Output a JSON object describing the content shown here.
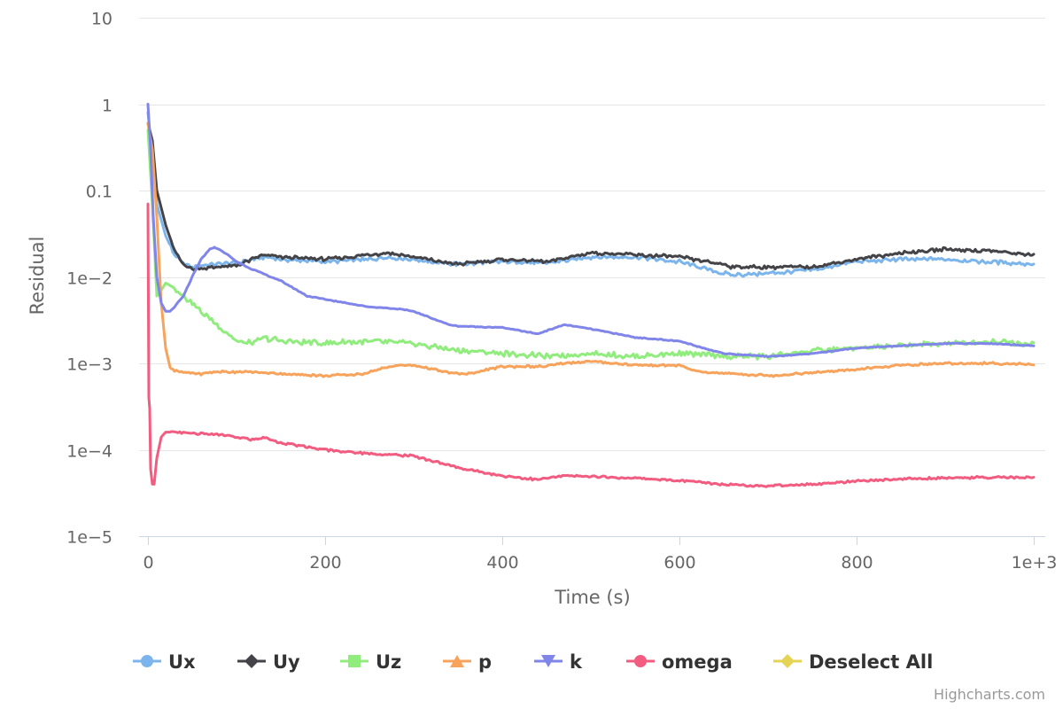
{
  "chart_data": {
    "type": "line",
    "title": "",
    "xlabel": "Time (s)",
    "ylabel": "Residual",
    "xlim": [
      0,
      1000
    ],
    "ylim": [
      1e-05,
      10
    ],
    "yscale": "log",
    "grid": true,
    "legend_position": "bottom",
    "x_ticks": [
      {
        "value": 0,
        "label": "0"
      },
      {
        "value": 200,
        "label": "200"
      },
      {
        "value": 400,
        "label": "400"
      },
      {
        "value": 600,
        "label": "600"
      },
      {
        "value": 800,
        "label": "800"
      },
      {
        "value": 1000,
        "label": "1e+3"
      }
    ],
    "y_ticks": [
      {
        "value": 10,
        "label": "10"
      },
      {
        "value": 1,
        "label": "1"
      },
      {
        "value": 0.1,
        "label": "0.1"
      },
      {
        "value": 0.01,
        "label": "1e−2"
      },
      {
        "value": 0.001,
        "label": "1e−3"
      },
      {
        "value": 0.0001,
        "label": "1e−4"
      },
      {
        "value": 1e-05,
        "label": "1e−5"
      }
    ],
    "series": [
      {
        "name": "Ux",
        "color": "#7cb5ec",
        "marker": "circle",
        "x": [
          0,
          5,
          10,
          20,
          30,
          40,
          50,
          60,
          80,
          100,
          130,
          150,
          200,
          250,
          270,
          300,
          330,
          350,
          400,
          450,
          500,
          550,
          600,
          650,
          660,
          700,
          750,
          800,
          850,
          900,
          950,
          1000
        ],
        "y": [
          0.8,
          0.25,
          0.07,
          0.03,
          0.018,
          0.014,
          0.013,
          0.0135,
          0.014,
          0.0145,
          0.017,
          0.016,
          0.015,
          0.016,
          0.017,
          0.016,
          0.0145,
          0.014,
          0.015,
          0.0145,
          0.017,
          0.017,
          0.015,
          0.011,
          0.0105,
          0.011,
          0.012,
          0.015,
          0.016,
          0.016,
          0.015,
          0.014
        ]
      },
      {
        "name": "Uy",
        "color": "#434348",
        "marker": "diamond",
        "x": [
          0,
          5,
          10,
          20,
          30,
          40,
          50,
          60,
          80,
          100,
          130,
          150,
          200,
          250,
          270,
          300,
          330,
          350,
          400,
          450,
          500,
          550,
          600,
          650,
          660,
          700,
          750,
          800,
          850,
          900,
          950,
          1000
        ],
        "y": [
          0.6,
          0.38,
          0.1,
          0.04,
          0.02,
          0.014,
          0.0125,
          0.0125,
          0.013,
          0.0135,
          0.018,
          0.017,
          0.016,
          0.018,
          0.019,
          0.017,
          0.015,
          0.014,
          0.016,
          0.015,
          0.019,
          0.018,
          0.017,
          0.014,
          0.013,
          0.013,
          0.013,
          0.016,
          0.019,
          0.021,
          0.02,
          0.018
        ]
      },
      {
        "name": "Uz",
        "color": "#90ed7d",
        "marker": "square",
        "x": [
          0,
          5,
          10,
          15,
          20,
          30,
          40,
          50,
          60,
          70,
          80,
          90,
          100,
          120,
          130,
          150,
          200,
          250,
          300,
          350,
          400,
          450,
          500,
          550,
          600,
          650,
          700,
          750,
          800,
          850,
          900,
          950,
          1000
        ],
        "y": [
          0.5,
          0.07,
          0.006,
          0.007,
          0.0085,
          0.0075,
          0.006,
          0.005,
          0.004,
          0.0033,
          0.0027,
          0.0022,
          0.0018,
          0.0017,
          0.002,
          0.0018,
          0.0017,
          0.0018,
          0.0017,
          0.0014,
          0.0013,
          0.0012,
          0.0013,
          0.0012,
          0.0013,
          0.0012,
          0.0012,
          0.0014,
          0.0015,
          0.0016,
          0.0017,
          0.0018,
          0.0017
        ]
      },
      {
        "name": "p",
        "color": "#f7a35c",
        "marker": "triangle",
        "x": [
          0,
          5,
          10,
          15,
          20,
          25,
          30,
          40,
          60,
          80,
          100,
          130,
          160,
          200,
          240,
          260,
          280,
          300,
          340,
          360,
          400,
          450,
          470,
          500,
          550,
          600,
          620,
          700,
          750,
          800,
          850,
          900,
          950,
          1000
        ],
        "y": [
          0.6,
          0.3,
          0.05,
          0.005,
          0.0015,
          0.0009,
          0.00082,
          0.00078,
          0.00076,
          0.0008,
          0.0008,
          0.00078,
          0.00075,
          0.00072,
          0.00075,
          0.00085,
          0.00095,
          0.00095,
          0.00078,
          0.00075,
          0.00092,
          0.00092,
          0.001,
          0.00105,
          0.00095,
          0.00095,
          0.0008,
          0.00072,
          0.00078,
          0.00085,
          0.00095,
          0.001,
          0.001,
          0.00098
        ]
      },
      {
        "name": "k",
        "color": "#8085e9",
        "marker": "triangle-down",
        "x": [
          0,
          3,
          6,
          10,
          15,
          20,
          25,
          30,
          40,
          50,
          60,
          70,
          75,
          80,
          90,
          100,
          120,
          150,
          180,
          200,
          250,
          280,
          300,
          340,
          350,
          400,
          440,
          470,
          500,
          550,
          600,
          650,
          700,
          750,
          800,
          850,
          900,
          950,
          1000
        ],
        "y": [
          1.0,
          0.3,
          0.05,
          0.01,
          0.005,
          0.004,
          0.004,
          0.0045,
          0.006,
          0.01,
          0.016,
          0.021,
          0.022,
          0.021,
          0.018,
          0.015,
          0.012,
          0.009,
          0.006,
          0.0055,
          0.0045,
          0.0043,
          0.004,
          0.0028,
          0.0027,
          0.0026,
          0.0022,
          0.0028,
          0.0025,
          0.002,
          0.0018,
          0.0013,
          0.0012,
          0.0013,
          0.0015,
          0.0016,
          0.0017,
          0.0017,
          0.0016
        ]
      },
      {
        "name": "omega",
        "color": "#f15c80",
        "marker": "circle",
        "x": [
          0,
          1,
          2,
          3,
          5,
          7,
          10,
          15,
          20,
          25,
          30,
          50,
          80,
          100,
          120,
          130,
          150,
          200,
          250,
          300,
          350,
          400,
          440,
          470,
          500,
          550,
          600,
          650,
          700,
          750,
          800,
          850,
          900,
          950,
          1000
        ],
        "y": [
          0.07,
          0.0004,
          0.0003,
          6e-05,
          4e-05,
          4e-05,
          8e-05,
          0.00014,
          0.00016,
          0.00016,
          0.00016,
          0.000155,
          0.00015,
          0.00014,
          0.00013,
          0.00014,
          0.00012,
          0.0001,
          9e-05,
          8.5e-05,
          6.2e-05,
          5e-05,
          4.5e-05,
          5e-05,
          4.9e-05,
          4.7e-05,
          4.4e-05,
          4e-05,
          3.8e-05,
          4e-05,
          4.3e-05,
          4.6e-05,
          4.7e-05,
          4.8e-05,
          4.8e-05
        ]
      }
    ],
    "legend_items": [
      {
        "label": "Ux",
        "color": "#7cb5ec",
        "marker": "circle"
      },
      {
        "label": "Uy",
        "color": "#434348",
        "marker": "diamond"
      },
      {
        "label": "Uz",
        "color": "#90ed7d",
        "marker": "square"
      },
      {
        "label": "p",
        "color": "#f7a35c",
        "marker": "triangle"
      },
      {
        "label": "k",
        "color": "#8085e9",
        "marker": "triangle-down"
      },
      {
        "label": "omega",
        "color": "#f15c80",
        "marker": "circle"
      },
      {
        "label": "Deselect All",
        "color": "#e4d354",
        "marker": "diamond"
      }
    ],
    "credits": "Highcharts.com"
  }
}
